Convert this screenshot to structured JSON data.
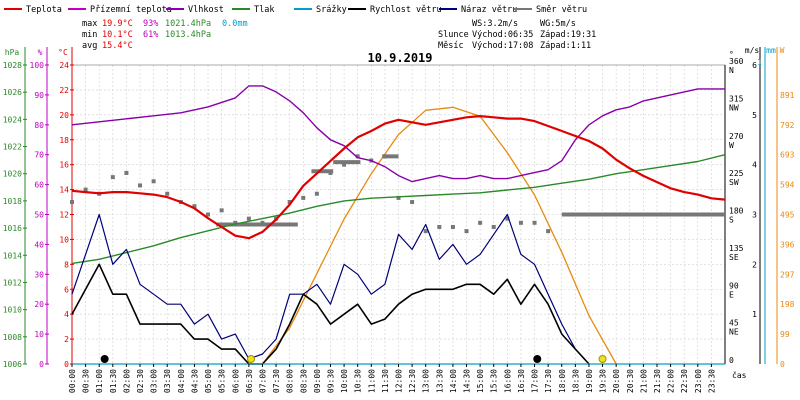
{
  "legend": [
    {
      "key": "teplota",
      "label": "Teplota",
      "color": "#e00000"
    },
    {
      "key": "prizemni",
      "label": "Přízemní teplota",
      "color": "#c000c0"
    },
    {
      "key": "vlhkost",
      "label": "Vlhkost",
      "color": "#8800aa"
    },
    {
      "key": "tlak",
      "label": "Tlak",
      "color": "#2a8a2a"
    },
    {
      "key": "srazky",
      "label": "Srážky",
      "color": "#00a0c8"
    },
    {
      "key": "rychlost",
      "label": "Rychlost větru",
      "color": "#000000"
    },
    {
      "key": "naraz",
      "label": "Náraz větru",
      "color": "#00007a"
    },
    {
      "key": "smer",
      "label": "Směr větru",
      "color": "#777777"
    }
  ],
  "stats": {
    "max_label": "max",
    "max_temp": "19.9°C",
    "max_hum": "93%",
    "max_press": "1021.4hPa",
    "max_rain": "0.0mm",
    "min_label": "min",
    "min_temp": "10.1°C",
    "min_hum": "61%",
    "min_press": "1013.4hPa",
    "avg_label": "avg",
    "avg_temp": "15.4°C"
  },
  "info": {
    "ws": "WS:3.2m/s",
    "wg": "WG:5m/s",
    "sun_label": "Slunce",
    "sunrise": "Východ:06:35",
    "sunset": "Západ:19:31",
    "moon_label": "Měsíc",
    "moonrise": "Východ:17:08",
    "moonset": "Západ:1:11"
  },
  "chart_data": {
    "type": "line",
    "title": "10.9.2019",
    "x_label": "čas",
    "x_ticks": [
      "00:00",
      "00:30",
      "01:00",
      "01:30",
      "02:00",
      "02:30",
      "03:00",
      "03:30",
      "04:00",
      "04:30",
      "05:00",
      "05:30",
      "06:00",
      "06:30",
      "07:00",
      "07:30",
      "08:00",
      "08:30",
      "09:00",
      "09:30",
      "10:00",
      "10:30",
      "11:00",
      "11:30",
      "12:00",
      "12:30",
      "13:00",
      "13:30",
      "14:00",
      "14:30",
      "15:00",
      "15:30",
      "16:00",
      "16:30",
      "17:00",
      "17:30",
      "18:00",
      "18:30",
      "19:00",
      "19:30",
      "20:00",
      "20:30",
      "21:00",
      "21:30",
      "22:00",
      "22:30",
      "23:00",
      "23:30"
    ],
    "axes": {
      "hpa": {
        "unit": "hPa",
        "color": "#2a8a2a",
        "ticks": [
          "1006",
          "1008",
          "1010",
          "1012",
          "1014",
          "1016",
          "1018",
          "1020",
          "1022",
          "1024",
          "1026",
          "1028"
        ],
        "range": [
          1006,
          1028
        ]
      },
      "pct": {
        "unit": "%",
        "color": "#c000c0",
        "ticks": [
          "0",
          "10",
          "20",
          "30",
          "40",
          "50",
          "60",
          "70",
          "80",
          "90",
          "100"
        ],
        "range": [
          0,
          100
        ]
      },
      "temp": {
        "unit": "°C",
        "color": "#e00000",
        "ticks": [
          "0",
          "2",
          "4",
          "6",
          "8",
          "10",
          "12",
          "14",
          "16",
          "18",
          "20",
          "22",
          "24"
        ],
        "range": [
          0,
          24
        ]
      },
      "dir": {
        "unit": "°",
        "color": "#000000",
        "ticks": [
          [
            "0",
            ""
          ],
          [
            "45",
            "NE"
          ],
          [
            "90",
            "E"
          ],
          [
            "135",
            "SE"
          ],
          [
            "180",
            "S"
          ],
          [
            "225",
            "SW"
          ],
          [
            "270",
            "W"
          ],
          [
            "315",
            "NW"
          ],
          [
            "360",
            "N"
          ]
        ],
        "range": [
          0,
          360
        ]
      },
      "ms": {
        "unit": "m/s",
        "color": "#000000",
        "ticks": [
          "6",
          "5",
          "4",
          "3",
          "2",
          "1"
        ],
        "range": [
          0,
          6
        ]
      },
      "mm": {
        "unit": "mm",
        "color": "#00a0c8",
        "ticks": [
          "1"
        ]
      },
      "wm2": {
        "unit": "W",
        "color": "#e88a10",
        "ticks": [
          "0",
          "99",
          "198",
          "297",
          "396",
          "495",
          "594",
          "693",
          "792",
          "891"
        ],
        "range": [
          0,
          990
        ]
      }
    },
    "series": {
      "temp": {
        "name": "Teplota",
        "color": "#e00000",
        "x": [
          0.0,
          0.5,
          1.0,
          1.5,
          2.0,
          2.5,
          3.0,
          3.5,
          4.0,
          4.5,
          5.0,
          5.5,
          6.0,
          6.5,
          7.0,
          7.5,
          8.0,
          8.5,
          9.0,
          9.5,
          10.0,
          10.5,
          11.0,
          11.5,
          12.0,
          12.5,
          13.0,
          13.5,
          14.0,
          14.5,
          15.0,
          15.5,
          16.0,
          16.5,
          17.0,
          17.5,
          18.0,
          18.5,
          19.0,
          19.5,
          20.0,
          20.5,
          21.0,
          21.5,
          22.0,
          22.5,
          23.0,
          23.5,
          24.0
        ],
        "y": [
          13.9,
          13.8,
          13.7,
          13.8,
          13.8,
          13.7,
          13.6,
          13.4,
          13.0,
          12.5,
          11.7,
          11.0,
          10.3,
          10.1,
          10.6,
          11.6,
          12.8,
          14.3,
          15.3,
          16.3,
          17.3,
          18.2,
          18.7,
          19.3,
          19.6,
          19.4,
          19.2,
          19.4,
          19.6,
          19.8,
          19.9,
          19.8,
          19.7,
          19.7,
          19.5,
          19.1,
          18.7,
          18.3,
          17.9,
          17.3,
          16.4,
          15.7,
          15.1,
          14.6,
          14.1,
          13.8,
          13.6,
          13.3,
          13.2
        ]
      },
      "humidity": {
        "name": "Vlhkost",
        "color": "#8800aa",
        "x": [
          0.0,
          1.0,
          2.0,
          3.0,
          4.0,
          5.0,
          6.0,
          6.5,
          7.0,
          7.5,
          8.0,
          8.5,
          9.0,
          9.5,
          10.0,
          10.5,
          11.0,
          11.5,
          12.0,
          12.5,
          13.0,
          13.5,
          14.0,
          14.5,
          15.0,
          15.5,
          16.0,
          16.5,
          17.0,
          17.5,
          18.0,
          18.5,
          19.0,
          19.5,
          20.0,
          20.5,
          21.0,
          21.5,
          22.0,
          22.5,
          23.0,
          23.5,
          24.0
        ],
        "y": [
          80,
          81,
          82,
          83,
          84,
          86,
          89,
          93,
          93,
          91,
          88,
          84,
          79,
          75,
          73,
          69,
          68,
          66,
          63,
          61,
          62,
          63,
          62,
          62,
          63,
          62,
          62,
          63,
          64,
          65,
          68,
          75,
          80,
          83,
          85,
          86,
          88,
          89,
          90,
          91,
          92,
          92,
          92
        ]
      },
      "pressure": {
        "name": "Tlak",
        "color": "#2a8a2a",
        "x": [
          0,
          1,
          2,
          3,
          4,
          5,
          6,
          7,
          8,
          9,
          10,
          11,
          12,
          13,
          14,
          15,
          16,
          17,
          18,
          19,
          20,
          21,
          22,
          23,
          24
        ],
        "y": [
          1013.4,
          1013.7,
          1014.2,
          1014.7,
          1015.3,
          1015.8,
          1016.3,
          1016.7,
          1017.1,
          1017.6,
          1018.0,
          1018.2,
          1018.3,
          1018.4,
          1018.5,
          1018.6,
          1018.8,
          1019.0,
          1019.3,
          1019.6,
          1020.0,
          1020.3,
          1020.6,
          1020.9,
          1021.4
        ]
      },
      "wind_speed": {
        "name": "Rychlost větru",
        "color": "#000000",
        "x": [
          0.0,
          0.5,
          1.0,
          1.5,
          2.0,
          2.5,
          3.0,
          3.5,
          4.0,
          4.5,
          5.0,
          5.5,
          6.0,
          6.5,
          7.0,
          7.5,
          8.0,
          8.5,
          9.0,
          9.5,
          10.0,
          10.5,
          11.0,
          11.5,
          12.0,
          12.5,
          13.0,
          13.5,
          14.0,
          14.5,
          15.0,
          15.5,
          16.0,
          16.5,
          17.0,
          17.5,
          18.0,
          18.5,
          19.0
        ],
        "y": [
          1.0,
          1.5,
          2.0,
          1.4,
          1.4,
          0.8,
          0.8,
          0.8,
          0.8,
          0.5,
          0.5,
          0.3,
          0.3,
          0.0,
          0.0,
          0.3,
          0.8,
          1.4,
          1.2,
          0.8,
          1.0,
          1.2,
          0.8,
          0.9,
          1.2,
          1.4,
          1.5,
          1.5,
          1.5,
          1.6,
          1.6,
          1.4,
          1.7,
          1.2,
          1.6,
          1.2,
          0.6,
          0.3,
          0.0
        ]
      },
      "wind_gust": {
        "name": "Náraz větru",
        "color": "#00007a",
        "x": [
          0.0,
          0.5,
          1.0,
          1.5,
          2.0,
          2.5,
          3.0,
          3.5,
          4.0,
          4.5,
          5.0,
          5.5,
          6.0,
          6.5,
          7.0,
          7.5,
          8.0,
          8.5,
          9.0,
          9.5,
          10.0,
          10.5,
          11.0,
          11.5,
          12.0,
          12.5,
          13.0,
          13.5,
          14.0,
          14.5,
          15.0,
          15.5,
          16.0,
          16.5,
          17.0,
          17.5,
          18.0,
          18.5,
          19.0
        ],
        "y": [
          1.4,
          2.2,
          3.0,
          2.0,
          2.3,
          1.6,
          1.4,
          1.2,
          1.2,
          0.8,
          1.0,
          0.5,
          0.6,
          0.1,
          0.2,
          0.5,
          1.4,
          1.4,
          1.6,
          1.2,
          2.0,
          1.8,
          1.4,
          1.6,
          2.6,
          2.3,
          2.8,
          2.1,
          2.4,
          2.0,
          2.2,
          2.6,
          3.0,
          2.2,
          2.0,
          1.4,
          0.8,
          0.3,
          0.0
        ]
      },
      "wind_dir": {
        "name": "Směr větru",
        "color": "#777777",
        "x": [
          0.0,
          0.5,
          1.0,
          1.5,
          2.0,
          2.5,
          3.0,
          3.5,
          4.0,
          4.5,
          5.0,
          5.5,
          6.0,
          6.5,
          7.0,
          7.5,
          8.0,
          8.5,
          9.0,
          9.5,
          10.0,
          10.5,
          11.0,
          11.5,
          12.0,
          12.5,
          13.0,
          13.5,
          14.0,
          14.5,
          15.0,
          15.5,
          16.0,
          16.5,
          17.0,
          17.5
        ],
        "y": [
          195,
          210,
          205,
          225,
          230,
          215,
          220,
          205,
          195,
          190,
          180,
          185,
          170,
          175,
          170,
          175,
          195,
          200,
          205,
          230,
          240,
          250,
          245,
          250,
          200,
          195,
          160,
          165,
          165,
          160,
          170,
          165,
          175,
          170,
          170,
          160
        ]
      },
      "wind_dir_avg": {
        "name": "Směr větru",
        "color": "#777777",
        "segments": [
          [
            5.3,
            8.3,
            168
          ],
          [
            8.8,
            9.6,
            232
          ],
          [
            9.6,
            10.6,
            243
          ],
          [
            11.4,
            12.0,
            250
          ],
          [
            18.0,
            24.0,
            180
          ]
        ]
      },
      "radiation": {
        "name": "Sluneční záření",
        "color": "#e88a10",
        "x": [
          7.0,
          8.0,
          9.0,
          10.0,
          11.0,
          12.0,
          13.0,
          14.0,
          15.0,
          16.0,
          17.0,
          18.0,
          19.0,
          20.0
        ],
        "y": [
          0,
          120,
          300,
          480,
          630,
          760,
          840,
          850,
          820,
          700,
          560,
          370,
          160,
          0
        ]
      }
    },
    "markers": [
      {
        "type": "moonset",
        "x": 1.2
      },
      {
        "type": "sunrise",
        "x": 6.58
      },
      {
        "type": "moonrise",
        "x": 17.1
      },
      {
        "type": "sunset",
        "x": 19.5
      }
    ]
  }
}
